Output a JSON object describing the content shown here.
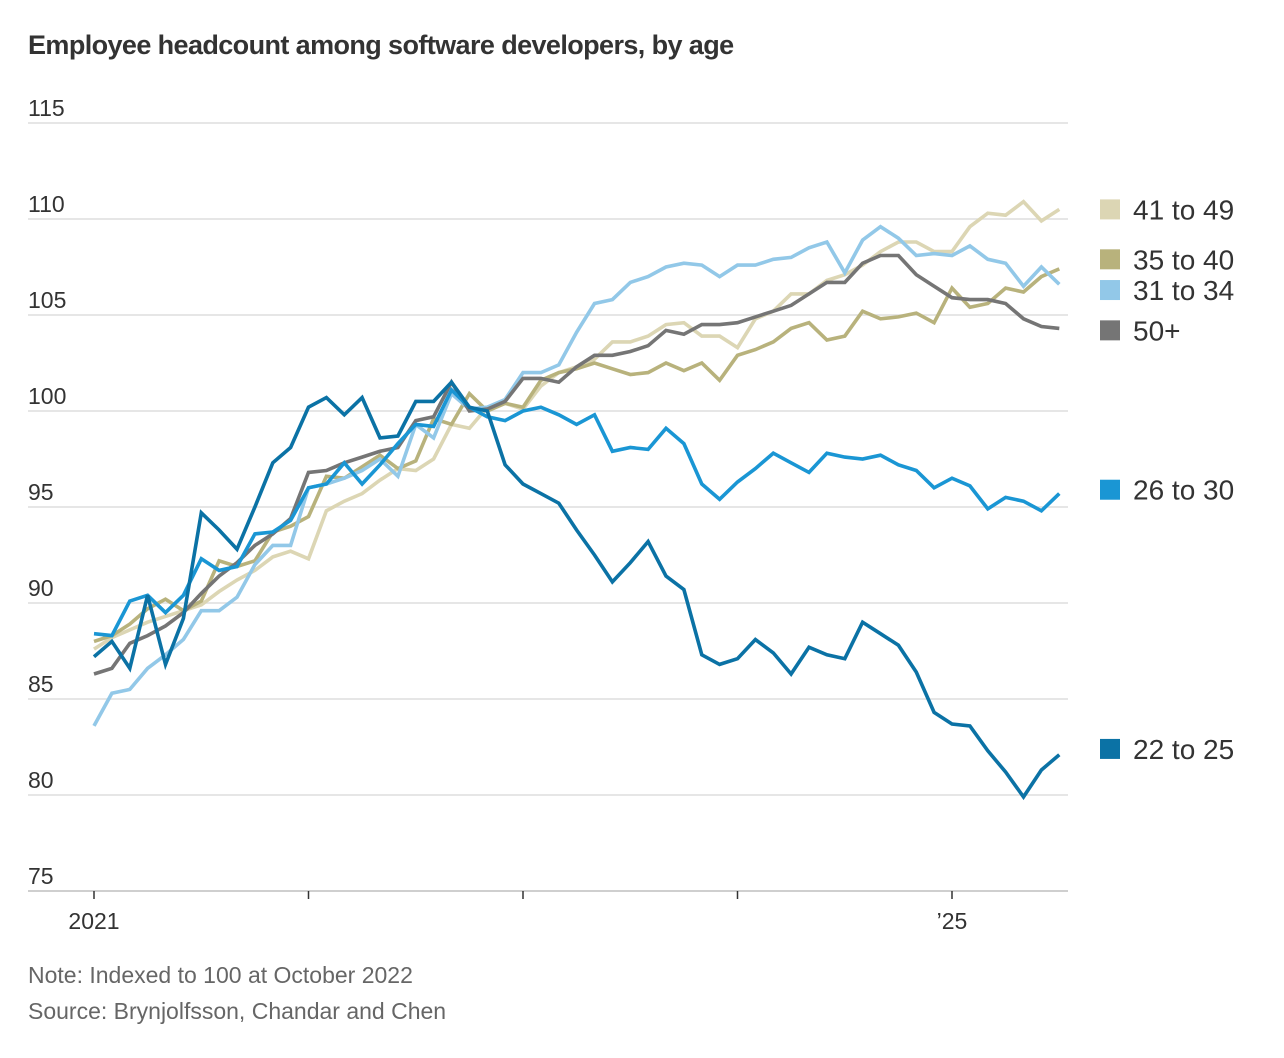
{
  "chart_data": {
    "type": "line",
    "title": "Employee headcount among software developers, by age",
    "xlabel": "",
    "ylabel": "",
    "ylim": [
      75,
      115
    ],
    "yticks": [
      115,
      110,
      105,
      100,
      95,
      90,
      85,
      80,
      75
    ],
    "ytick_labels": [
      "115",
      "110",
      "105",
      "100",
      "95",
      "90",
      "85",
      "80",
      "75"
    ],
    "x_start": "2021-01",
    "x_end": "2025-07",
    "x_ticks": [
      "2021",
      "",
      "",
      "",
      "’25"
    ],
    "x_tick_years": [
      2021,
      2022,
      2023,
      2024,
      2025
    ],
    "grid": true,
    "legend_placement": "right, labels beside line ends",
    "series": [
      {
        "name": "41 to 49",
        "color": "#dcd6b4",
        "values": [
          87.6,
          88.2,
          88.6,
          89.0,
          89.3,
          89.6,
          89.9,
          90.6,
          91.2,
          91.7,
          92.4,
          92.7,
          92.3,
          94.8,
          95.3,
          95.7,
          96.4,
          97.0,
          96.9,
          97.5,
          99.3,
          99.1,
          100.2,
          100.4,
          100.1,
          101.3,
          102.0,
          102.3,
          102.7,
          103.6,
          103.6,
          103.9,
          104.5,
          104.6,
          103.9,
          103.9,
          103.3,
          104.8,
          105.2,
          106.1,
          106.1,
          106.8,
          107.1,
          107.6,
          108.3,
          108.8,
          108.8,
          108.3,
          108.3,
          109.6,
          110.3,
          110.2,
          110.9,
          109.9,
          110.5
        ]
      },
      {
        "name": "35 to 40",
        "color": "#b8b27c",
        "values": [
          88.0,
          88.3,
          88.9,
          89.7,
          90.2,
          89.6,
          90.1,
          92.2,
          91.9,
          92.2,
          93.7,
          94.0,
          94.5,
          96.6,
          96.5,
          97.1,
          97.7,
          97.0,
          97.4,
          99.6,
          99.3,
          100.9,
          100.0,
          100.4,
          100.2,
          101.6,
          102.0,
          102.2,
          102.5,
          102.2,
          101.9,
          102.0,
          102.5,
          102.1,
          102.5,
          101.6,
          102.9,
          103.2,
          103.6,
          104.3,
          104.6,
          103.7,
          103.9,
          105.2,
          104.8,
          104.9,
          105.1,
          104.6,
          106.4,
          105.4,
          105.6,
          106.4,
          106.2,
          107.0,
          107.4
        ]
      },
      {
        "name": "31 to 34",
        "color": "#92c8e8",
        "values": [
          83.6,
          85.3,
          85.5,
          86.6,
          87.3,
          88.1,
          89.6,
          89.6,
          90.3,
          92.0,
          93.0,
          93.0,
          96.0,
          96.2,
          96.5,
          96.9,
          97.5,
          96.6,
          99.3,
          98.6,
          100.9,
          100.1,
          100.2,
          100.6,
          102.0,
          102.0,
          102.4,
          104.1,
          105.6,
          105.8,
          106.7,
          107.0,
          107.5,
          107.7,
          107.6,
          107.0,
          107.6,
          107.6,
          107.9,
          108.0,
          108.5,
          108.8,
          107.2,
          108.9,
          109.6,
          109.0,
          108.1,
          108.2,
          108.1,
          108.6,
          107.9,
          107.7,
          106.5,
          107.5,
          106.6
        ]
      },
      {
        "name": "50+",
        "color": "#757575",
        "values": [
          86.3,
          86.6,
          87.9,
          88.3,
          88.8,
          89.5,
          90.5,
          91.4,
          92.1,
          93.0,
          93.6,
          94.4,
          96.8,
          96.9,
          97.3,
          97.6,
          97.9,
          98.1,
          99.5,
          99.7,
          101.5,
          100.0,
          100.1,
          100.5,
          101.7,
          101.7,
          101.5,
          102.3,
          102.9,
          102.9,
          103.1,
          103.4,
          104.2,
          104.0,
          104.5,
          104.5,
          104.6,
          104.9,
          105.2,
          105.5,
          106.1,
          106.7,
          106.7,
          107.7,
          108.1,
          108.1,
          107.1,
          106.5,
          105.9,
          105.8,
          105.8,
          105.6,
          104.8,
          104.4,
          104.3
        ]
      },
      {
        "name": "26 to 30",
        "color": "#1a96d4",
        "values": [
          88.4,
          88.3,
          90.1,
          90.4,
          89.5,
          90.4,
          92.3,
          91.7,
          91.9,
          93.6,
          93.7,
          94.3,
          96.0,
          96.2,
          97.3,
          96.2,
          97.2,
          98.3,
          99.3,
          99.2,
          101.1,
          100.2,
          99.7,
          99.5,
          100.0,
          100.2,
          99.8,
          99.3,
          99.8,
          97.9,
          98.1,
          98.0,
          99.1,
          98.3,
          96.2,
          95.4,
          96.3,
          97.0,
          97.8,
          97.3,
          96.8,
          97.8,
          97.6,
          97.5,
          97.7,
          97.2,
          96.9,
          96.0,
          96.5,
          96.1,
          94.9,
          95.5,
          95.3,
          94.8,
          95.7
        ]
      },
      {
        "name": "22 to 25",
        "color": "#0b72a5",
        "values": [
          87.2,
          88.0,
          86.6,
          90.4,
          86.8,
          89.2,
          94.7,
          93.8,
          92.8,
          95.0,
          97.3,
          98.1,
          100.2,
          100.7,
          99.8,
          100.7,
          98.6,
          98.7,
          100.5,
          100.5,
          101.5,
          100.2,
          100.0,
          97.2,
          96.2,
          95.7,
          95.2,
          93.8,
          92.5,
          91.1,
          92.1,
          93.2,
          91.4,
          90.7,
          87.3,
          86.8,
          87.1,
          88.1,
          87.4,
          86.3,
          87.7,
          87.3,
          87.1,
          89.0,
          88.4,
          87.8,
          86.4,
          84.3,
          83.7,
          83.6,
          82.3,
          81.2,
          79.9,
          81.3,
          82.1
        ]
      }
    ],
    "legend": [
      {
        "label": "41 to 49",
        "color": "#dcd6b4",
        "value_anchor": 110.5
      },
      {
        "label": "35 to 40",
        "color": "#b8b27c",
        "value_anchor": 107.9
      },
      {
        "label": "31 to 34",
        "color": "#92c8e8",
        "value_anchor": 106.3
      },
      {
        "label": "50+",
        "color": "#757575",
        "value_anchor": 104.2
      },
      {
        "label": "26 to 30",
        "color": "#1a96d4",
        "value_anchor": 95.9
      },
      {
        "label": "22 to 25",
        "color": "#0b72a5",
        "value_anchor": 82.4
      }
    ],
    "annotations": {
      "note": "Note: Indexed to 100 at October 2022",
      "source": "Source: Brynjolfsson, Chandar and Chen"
    }
  }
}
